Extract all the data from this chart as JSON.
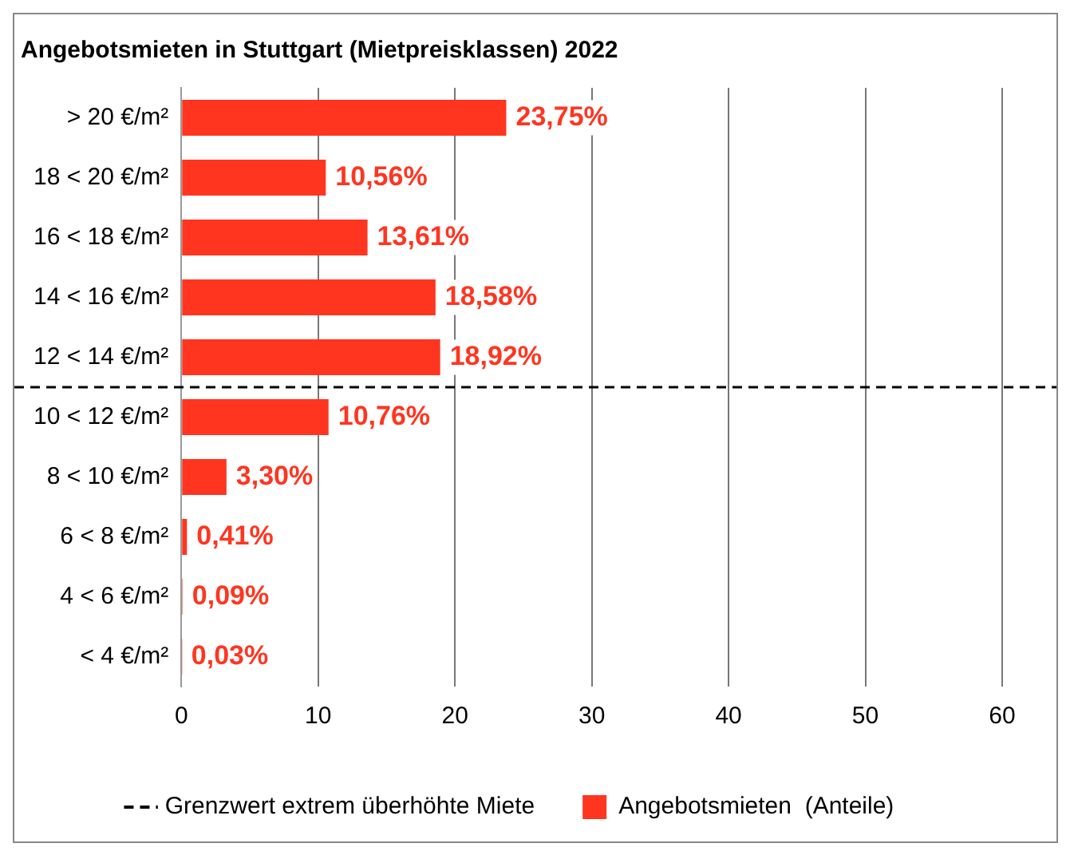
{
  "chart_data": {
    "type": "bar",
    "orientation": "horizontal",
    "title": "Angebotsmieten in Stuttgart (Mietpreisklassen) 2022",
    "categories": [
      "> 20 €/m²",
      "18 < 20 €/m²",
      "16 < 18 €/m²",
      "14 < 16 €/m²",
      "12 < 14 €/m²",
      "10 < 12 €/m²",
      "8 < 10 €/m²",
      "6 < 8 €/m²",
      "4 < 6 €/m²",
      "< 4 €/m²"
    ],
    "series": [
      {
        "name": "Angebotsmieten  (Anteile)",
        "color": "#ff3520",
        "values": [
          23.75,
          10.56,
          13.61,
          18.58,
          18.92,
          10.76,
          3.3,
          0.41,
          0.09,
          0.03
        ],
        "value_labels": [
          "23,75%",
          "10,56%",
          "13,61%",
          "18,58%",
          "18,92%",
          "10,76%",
          "3,30%",
          "0,41%",
          "0,09%",
          "0,03%"
        ]
      }
    ],
    "xlim": [
      0,
      60
    ],
    "xticks": [
      0,
      10,
      20,
      30,
      40,
      50,
      60
    ],
    "grid": "x",
    "legend": "bottom",
    "ref_lines": [
      {
        "axis": "y",
        "value": "12 < 14 €/m²",
        "label": "Grenzwert extrem überhöhte Miete",
        "color": "#000000",
        "line_style": "dashed"
      }
    ]
  }
}
